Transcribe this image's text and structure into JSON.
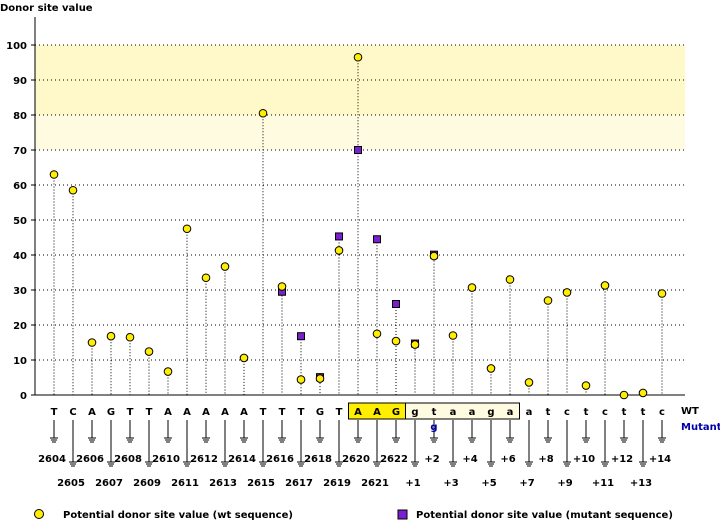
{
  "chart_data": {
    "type": "lollipop",
    "ylabel": "Donor site value",
    "ylim": [
      0,
      100
    ],
    "yticks": [
      0,
      10,
      20,
      30,
      40,
      50,
      60,
      70,
      80,
      90,
      100
    ],
    "highlight_bands": [
      {
        "from": 80,
        "to": 100,
        "color": "#fff8c8"
      },
      {
        "from": 70,
        "to": 80,
        "color": "#fffbe0"
      }
    ],
    "row_labels": {
      "wt": "WT",
      "mutant": "Mutant"
    },
    "mutant_base": "g",
    "mutant_base_index": 20,
    "positions": [
      {
        "base": "T",
        "label": "2604",
        "wt": 63,
        "mutant": null,
        "box": null
      },
      {
        "base": "C",
        "label": "2605",
        "wt": 58.5,
        "mutant": null,
        "box": null
      },
      {
        "base": "A",
        "label": "2606",
        "wt": 15,
        "mutant": null,
        "box": null
      },
      {
        "base": "G",
        "label": "2607",
        "wt": 16.8,
        "mutant": null,
        "box": null
      },
      {
        "base": "T",
        "label": "2608",
        "wt": 16.5,
        "mutant": null,
        "box": null
      },
      {
        "base": "T",
        "label": "2609",
        "wt": 12.4,
        "mutant": null,
        "box": null
      },
      {
        "base": "A",
        "label": "2610",
        "wt": 6.7,
        "mutant": null,
        "box": null
      },
      {
        "base": "A",
        "label": "2611",
        "wt": 47.5,
        "mutant": null,
        "box": null
      },
      {
        "base": "A",
        "label": "2612",
        "wt": 33.5,
        "mutant": null,
        "box": null
      },
      {
        "base": "A",
        "label": "2613",
        "wt": 36.7,
        "mutant": null,
        "box": null
      },
      {
        "base": "A",
        "label": "2614",
        "wt": 10.6,
        "mutant": null,
        "box": null
      },
      {
        "base": "T",
        "label": "2615",
        "wt": 80.5,
        "mutant": null,
        "box": null
      },
      {
        "base": "T",
        "label": "2616",
        "wt": 31,
        "mutant": 29.5,
        "box": null
      },
      {
        "base": "T",
        "label": "2617",
        "wt": 4.4,
        "mutant": 16.8,
        "box": null
      },
      {
        "base": "G",
        "label": "2618",
        "wt": 4.7,
        "mutant": 5.1,
        "box": null
      },
      {
        "base": "T",
        "label": "2619",
        "wt": 41.3,
        "mutant": 45.3,
        "box": null
      },
      {
        "base": "A",
        "label": "2620",
        "wt": 96.5,
        "mutant": 70,
        "box": "exon"
      },
      {
        "base": "A",
        "label": "2621",
        "wt": 17.5,
        "mutant": 44.5,
        "box": "exon"
      },
      {
        "base": "G",
        "label": "2622",
        "wt": 15.4,
        "mutant": 26,
        "box": "exon"
      },
      {
        "base": "g",
        "label": "+1",
        "wt": 14.4,
        "mutant": 14.7,
        "box": "intron"
      },
      {
        "base": "t",
        "label": "+2",
        "wt": 39.7,
        "mutant": 40.1,
        "box": "intron"
      },
      {
        "base": "a",
        "label": "+3",
        "wt": 17,
        "mutant": null,
        "box": "intron"
      },
      {
        "base": "a",
        "label": "+4",
        "wt": 30.7,
        "mutant": null,
        "box": "intron"
      },
      {
        "base": "g",
        "label": "+5",
        "wt": 7.6,
        "mutant": null,
        "box": "intron"
      },
      {
        "base": "a",
        "label": "+6",
        "wt": 33,
        "mutant": null,
        "box": "intron"
      },
      {
        "base": "a",
        "label": "+7",
        "wt": 3.6,
        "mutant": null,
        "box": null
      },
      {
        "base": "t",
        "label": "+8",
        "wt": 27,
        "mutant": null,
        "box": null
      },
      {
        "base": "c",
        "label": "+9",
        "wt": 29.3,
        "mutant": null,
        "box": null
      },
      {
        "base": "t",
        "label": "+10",
        "wt": 2.7,
        "mutant": null,
        "box": null
      },
      {
        "base": "c",
        "label": "+11",
        "wt": 31.3,
        "mutant": null,
        "box": null
      },
      {
        "base": "t",
        "label": "+12",
        "wt": 0,
        "mutant": null,
        "box": null
      },
      {
        "base": "t",
        "label": "+13",
        "wt": 0.6,
        "mutant": null,
        "box": null
      },
      {
        "base": "c",
        "label": "+14",
        "wt": 29,
        "mutant": null,
        "box": null
      }
    ],
    "legend": {
      "wt": {
        "label": "Potential donor site value (wt sequence)",
        "color": "#ffee00"
      },
      "mutant": {
        "label": "Potential donor site value (mutant sequence)",
        "color": "#7a20d0"
      }
    },
    "colors": {
      "exon_box": "#ffee00",
      "intron_box": "#fffbe0",
      "grid": "#000000",
      "stem": "#000000"
    }
  }
}
